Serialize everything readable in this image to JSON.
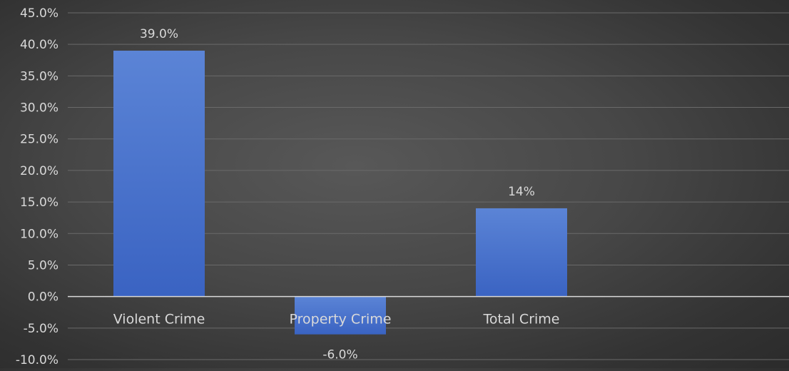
{
  "chart_data": {
    "type": "bar",
    "title": "",
    "xlabel": "",
    "ylabel": "",
    "categories": [
      "Violent Crime",
      "Property Crime",
      "Total Crime"
    ],
    "values": [
      39.0,
      -6.0,
      14.0
    ],
    "data_labels": [
      "39.0%",
      "-6.0%",
      "14%"
    ],
    "ylim": [
      -10,
      45
    ],
    "ytick_step": 5,
    "yticks": [
      "45.0%",
      "40.0%",
      "35.0%",
      "30.0%",
      "25.0%",
      "20.0%",
      "15.0%",
      "10.0%",
      "5.0%",
      "0.0%",
      "-5.0%",
      "-10.0%"
    ],
    "grid": true,
    "legend": "none",
    "colors": {
      "bar_top": "#5b84d6",
      "bar_bottom": "#3a63c2",
      "gridline": "#6a6a6a",
      "zero_line": "#d9d9d9",
      "text": "#d9d9d9"
    }
  }
}
